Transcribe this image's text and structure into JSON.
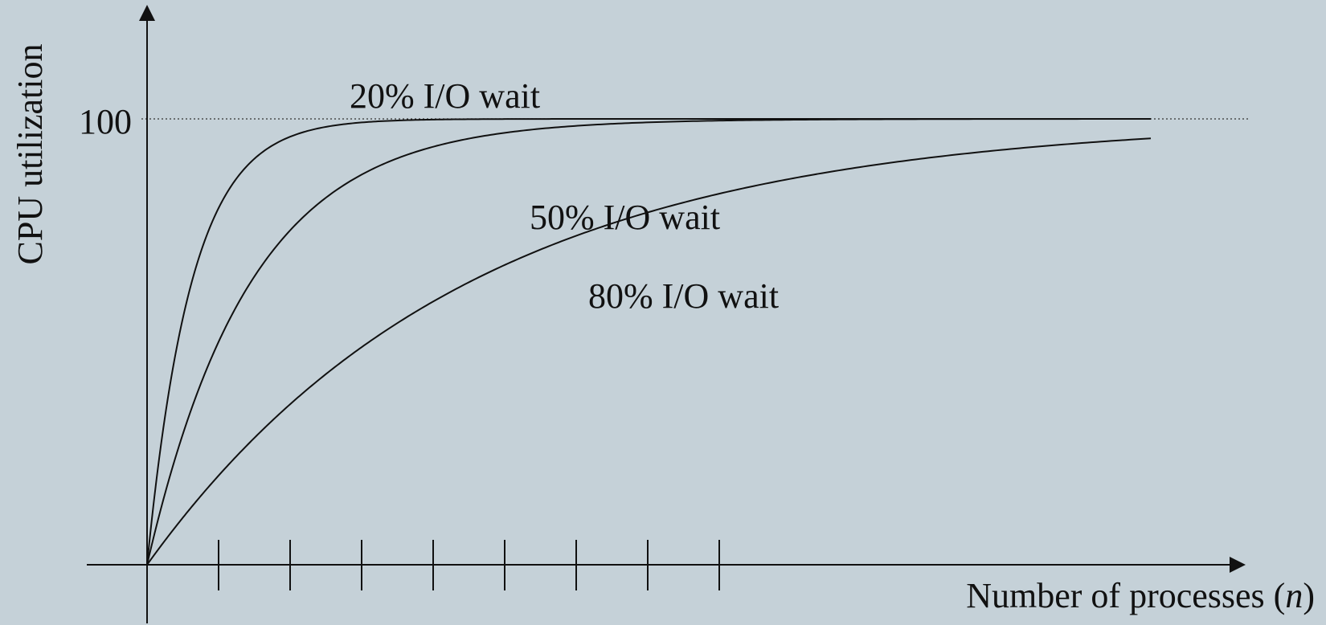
{
  "chart_data": {
    "type": "line",
    "xlabel_prefix": "Number of processes (",
    "xlabel_var": "n",
    "xlabel_suffix": ")",
    "ylabel": "CPU utilization",
    "ylim": [
      0,
      100
    ],
    "y_ticks": [
      {
        "value": 100,
        "label": "100"
      }
    ],
    "x_ticks": [
      1,
      2,
      3,
      4,
      5,
      6,
      7,
      8
    ],
    "reference_line": {
      "y": 100,
      "style": "dotted"
    },
    "x_range": [
      0,
      14
    ],
    "series": [
      {
        "name": "20% I/O wait",
        "io_wait": 0.2
      },
      {
        "name": "50% I/O wait",
        "io_wait": 0.5
      },
      {
        "name": "80% I/O wait",
        "io_wait": 0.8
      }
    ]
  },
  "colors": {
    "background": "#c5d1d8",
    "line": "#111111"
  }
}
